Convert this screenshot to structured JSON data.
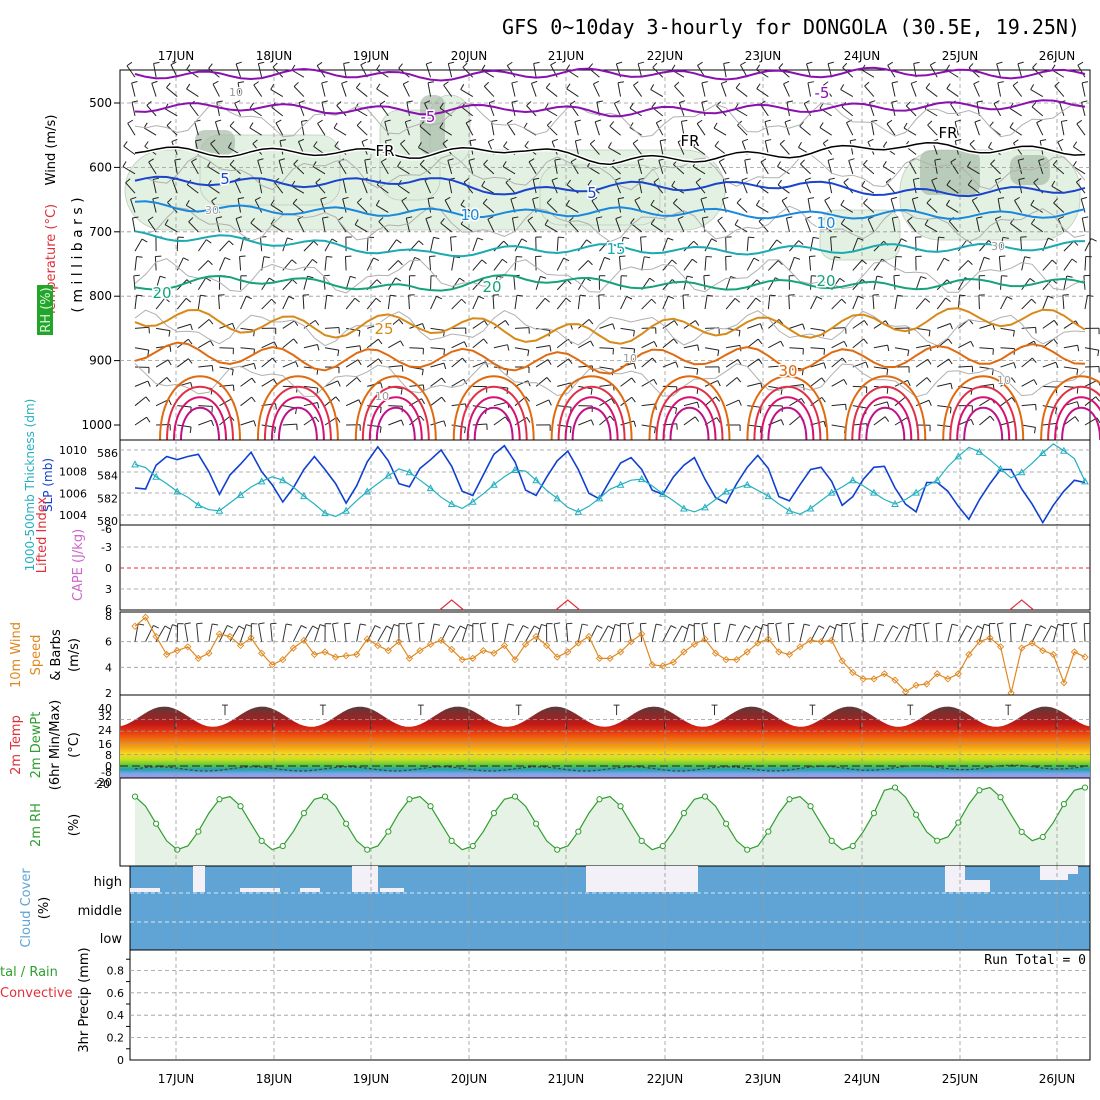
{
  "title": "GFS 0~10day 3-hourly for DONGOLA (30.5E, 19.25N)",
  "dates": [
    "17JUN",
    "18JUN",
    "19JUN",
    "20JUN",
    "21JUN",
    "22JUN",
    "23JUN",
    "24JUN",
    "25JUN",
    "26JUN"
  ],
  "colors": {
    "temp": "#e0303a",
    "wind_label": "#7a00b0",
    "rh_green": "#2e9e2e",
    "cape": "#cc66cc",
    "thickness": "#22b0c0",
    "slp": "#1040d0",
    "cloud": "#5fa4d4",
    "orange": "#e08820"
  },
  "upper": {
    "ylabel_wind": "Wind (m/s)",
    "ylabel_temp": "Temperature (°C)",
    "ylabel_rh": "RH (%)",
    "ylabel_mb": "( m i l l i b a r s )",
    "ticks": [
      500,
      600,
      700,
      800,
      900,
      1000
    ],
    "isotherm_labels": [
      {
        "text": "-5",
        "color": "#8a10b0"
      },
      {
        "text": "-5",
        "color": "#8a10b0"
      },
      {
        "text": "FR",
        "color": "#000000"
      },
      {
        "text": "FR",
        "color": "#000000"
      },
      {
        "text": "FR",
        "color": "#000000"
      },
      {
        "text": "5",
        "color": "#1a44cc"
      },
      {
        "text": "5",
        "color": "#1a44cc"
      },
      {
        "text": "10",
        "color": "#1a88dd"
      },
      {
        "text": "10",
        "color": "#1a88dd"
      },
      {
        "text": "15",
        "color": "#1aaab0"
      },
      {
        "text": "20",
        "color": "#16a27a"
      },
      {
        "text": "20",
        "color": "#16a27a"
      },
      {
        "text": "20",
        "color": "#16a27a"
      },
      {
        "text": "25",
        "color": "#d88a18"
      },
      {
        "text": "30",
        "color": "#e06a10"
      }
    ],
    "rh_labels": [
      "10",
      "30",
      "10",
      "30",
      "10",
      "10"
    ],
    "isotherms": [
      {
        "name": "-10",
        "color": "#8a10b0",
        "levels": [
          455,
          458,
          452,
          460,
          455,
          452,
          458,
          455,
          450,
          456,
          454
        ]
      },
      {
        "name": "-5",
        "color": "#8a10b0",
        "levels": [
          508,
          505,
          510,
          512,
          507,
          515,
          510,
          508,
          506,
          504,
          500
        ]
      },
      {
        "name": "FR",
        "color": "#000000",
        "levels": [
          572,
          578,
          575,
          580,
          570,
          590,
          585,
          578,
          565,
          572,
          575
        ]
      },
      {
        "name": "5",
        "color": "#1a44cc",
        "levels": [
          620,
          622,
          625,
          618,
          640,
          628,
          630,
          625,
          640,
          638,
          632
        ]
      },
      {
        "name": "10",
        "color": "#1a88dd",
        "levels": [
          658,
          665,
          668,
          670,
          672,
          668,
          670,
          675,
          672,
          675,
          670
        ]
      },
      {
        "name": "15",
        "color": "#1aaab0",
        "levels": [
          705,
          712,
          720,
          735,
          728,
          725,
          730,
          728,
          725,
          725,
          720
        ]
      },
      {
        "name": "20",
        "color": "#16a27a",
        "levels": [
          788,
          772,
          780,
          790,
          770,
          780,
          785,
          780,
          785,
          778,
          780
        ]
      },
      {
        "name": "25",
        "color": "#d88a18",
        "levels": [
          830,
          840,
          850,
          840,
          855,
          860,
          845,
          850,
          840,
          830,
          840
        ]
      },
      {
        "name": "30",
        "color": "#e06a10",
        "levels": [
          885,
          890,
          900,
          895,
          900,
          905,
          890,
          900,
          895,
          890,
          890
        ]
      }
    ]
  },
  "slp_panel": {
    "ylabel_thk": "1000-500mb Thickness (dm)",
    "ylabel_slp": "SLP (mb)",
    "left_ticks": [
      "586",
      "584",
      "582",
      "580"
    ],
    "right_ticks": [
      "1010",
      "1008",
      "1006",
      "1004"
    ],
    "slp": [
      1006.5,
      1006.4,
      1008.6,
      1009.4,
      1009.1,
      1009.4,
      1009.6,
      1008.0,
      1005.9,
      1007.7,
      1008.7,
      1009.8,
      1008.0,
      1006.8,
      1005.2,
      1006.5,
      1008.2,
      1009.4,
      1008.2,
      1006.9,
      1005.1,
      1006.7,
      1008.9,
      1010.3,
      1009.0,
      1006.9,
      1006.6,
      1008.3,
      1009.1,
      1010.0,
      1008.5,
      1006.2,
      1005.8,
      1007.7,
      1009.6,
      1010.4,
      1008.9,
      1006.3,
      1005.8,
      1007.5,
      1009.0,
      1009.9,
      1008.2,
      1006.0,
      1005.5,
      1007.2,
      1008.8,
      1009.3,
      1008.2,
      1006.3,
      1005.9,
      1007.5,
      1008.6,
      1009.3,
      1007.3,
      1005.6,
      1005.1,
      1006.9,
      1008.4,
      1009.5,
      1008.3,
      1005.7,
      1005.3,
      1006.8,
      1008.2,
      1008.4,
      1007.1,
      1004.9,
      1005.7,
      1007.3,
      1008.4,
      1008.5,
      1006.5,
      1005.0,
      1004.3,
      1007.0,
      1007.0,
      1006.2,
      1004.8,
      1003.6,
      1005.4,
      1006.9,
      1008.2,
      1008.2,
      1006.4,
      1005.0,
      1003.3,
      1004.9,
      1006.2,
      1007.2,
      1007.0
    ],
    "thk": [
      585.0,
      584.7,
      583.9,
      583.3,
      582.6,
      582.1,
      581.4,
      581.0,
      580.9,
      581.6,
      582.3,
      583.0,
      583.5,
      583.9,
      583.6,
      583.0,
      582.2,
      581.5,
      580.7,
      580.4,
      580.9,
      581.8,
      582.6,
      583.3,
      584.0,
      584.6,
      584.3,
      583.6,
      582.9,
      582.1,
      581.5,
      581.1,
      581.7,
      582.4,
      583.2,
      583.9,
      584.5,
      584.4,
      583.6,
      582.7,
      582.0,
      581.2,
      580.8,
      581.3,
      582.0,
      582.8,
      583.2,
      583.6,
      583.7,
      583.1,
      582.4,
      581.8,
      581.1,
      580.8,
      581.2,
      581.9,
      582.6,
      582.9,
      583.2,
      582.7,
      582.2,
      581.5,
      580.9,
      580.6,
      581.1,
      581.8,
      582.5,
      583.0,
      583.6,
      583.1,
      582.5,
      581.9,
      581.5,
      581.9,
      582.5,
      583.1,
      583.6,
      584.8,
      585.7,
      586.5,
      586.1,
      585.4,
      584.6,
      583.8,
      584.3,
      585.1,
      586.0,
      586.8,
      586.2,
      585.5,
      583.5
    ]
  },
  "lifted_panel": {
    "ylabel_li": "Lifted Index",
    "ylabel_cape": "CAPE (J/kg)",
    "ticks": [
      "-6",
      "-3",
      "0",
      "3",
      "6"
    ],
    "spikes": [
      30,
      41,
      84
    ]
  },
  "wind_panel": {
    "ylabel_1": "10m Wind",
    "ylabel_2": "Speed",
    "ylabel_3": "& Barbs",
    "ylabel_unit": "(m/s)",
    "ticks": [
      "8",
      "6",
      "4",
      "2"
    ],
    "speed": [
      7.2,
      7.9,
      6.4,
      5.0,
      5.3,
      5.6,
      4.7,
      5.1,
      6.6,
      6.4,
      5.7,
      6.3,
      5.1,
      4.2,
      4.6,
      5.5,
      6.1,
      5.0,
      5.2,
      4.8,
      4.9,
      5.0,
      6.2,
      5.7,
      5.3,
      6.0,
      4.7,
      5.3,
      5.8,
      6.1,
      5.4,
      4.6,
      4.7,
      5.3,
      5.1,
      5.7,
      4.6,
      5.8,
      6.4,
      5.7,
      4.8,
      5.2,
      5.9,
      6.4,
      4.7,
      4.7,
      5.2,
      6.0,
      6.6,
      4.2,
      4.1,
      4.4,
      5.2,
      5.8,
      6.2,
      5.1,
      4.6,
      4.6,
      5.2,
      5.9,
      6.2,
      5.2,
      5.0,
      5.6,
      6.1,
      6.0,
      6.1,
      4.5,
      3.6,
      3.1,
      3.1,
      3.5,
      3.0,
      2.1,
      2.6,
      2.7,
      3.5,
      3.1,
      3.5,
      5.0,
      6.0,
      6.3,
      5.6,
      2.0,
      5.5,
      5.9,
      5.3,
      5.0,
      2.8,
      5.2,
      4.8
    ]
  },
  "temp_panel": {
    "ylabel_1": "2m Temp",
    "ylabel_2": "2m DewPt",
    "ylabel_3": "(6hr Min/Max)",
    "ylabel_unit": "(°C)",
    "ticks": [
      "40",
      "32",
      "24",
      "16",
      "8",
      "0",
      "-8",
      "-20"
    ],
    "max_c": [
      42,
      42,
      42,
      42,
      42,
      42,
      42,
      42,
      42,
      42
    ],
    "min_c": [
      28,
      27,
      28,
      28,
      28,
      28,
      28,
      28,
      28,
      28
    ]
  },
  "rh_panel": {
    "ylabel": "2m RH",
    "ylabel_unit": "(%)",
    "tick_top": "20"
  },
  "cloud_panel": {
    "ylabel": "Cloud Cover",
    "ylabel_unit": "(%)",
    "levels": [
      "high",
      "middle",
      "low"
    ]
  },
  "precip_panel": {
    "ylabel_left_1": "tal / Rain",
    "ylabel_left_2": "Convective",
    "ylabel": "3hr Precip (mm)",
    "ticks": [
      "0.8",
      "0.6",
      "0.4",
      "0.2",
      "0"
    ],
    "run_total": "Run Total = 0"
  }
}
